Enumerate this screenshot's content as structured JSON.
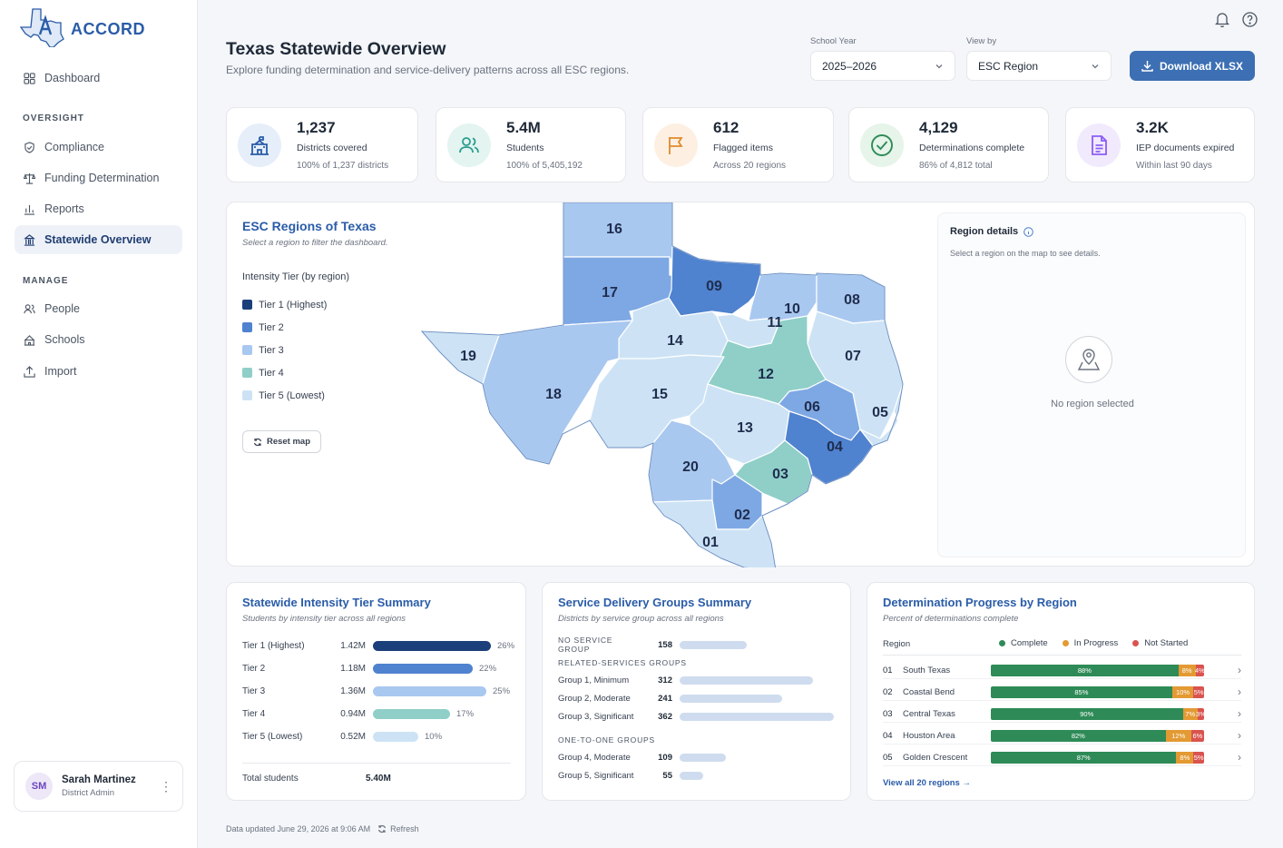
{
  "app": {
    "name": "ACCORD"
  },
  "sidebar": {
    "dashboard": "Dashboard",
    "oversight_header": "OVERSIGHT",
    "oversight": [
      "Compliance",
      "Funding Determination",
      "Reports",
      "Statewide Overview"
    ],
    "manage_header": "MANAGE",
    "manage": [
      "People",
      "Schools",
      "Import"
    ],
    "user": {
      "initials": "SM",
      "name": "Sarah Martinez",
      "role": "District Admin"
    }
  },
  "header": {
    "title": "Texas Statewide Overview",
    "subtitle": "Explore funding determination and service-delivery patterns across all ESC regions.",
    "school_year_label": "School Year",
    "school_year_value": "2025–2026",
    "view_by_label": "View by",
    "view_by_value": "ESC Region",
    "download_label": "Download XLSX"
  },
  "kpis": [
    {
      "value": "1,237",
      "label": "Districts covered",
      "sub": "100% of 1,237 districts",
      "icon": "school-icon",
      "color": "#2a5ca8"
    },
    {
      "value": "5.4M",
      "label": "Students",
      "sub": "100% of 5,405,192",
      "icon": "users-icon",
      "color": "#2a9d8f"
    },
    {
      "value": "612",
      "label": "Flagged items",
      "sub": "Across 20 regions",
      "icon": "flag-icon",
      "color": "#e08a2c"
    },
    {
      "value": "4,129",
      "label": "Determinations complete",
      "sub": "86% of 4,812 total",
      "icon": "check-circle-icon",
      "color": "#2e8b57"
    },
    {
      "value": "3.2K",
      "label": "IEP documents expired",
      "sub": "Within last 90 days",
      "icon": "document-icon",
      "color": "#8b5cf6"
    }
  ],
  "map": {
    "title": "ESC Regions of Texas",
    "subtitle": "Select a region to filter the dashboard.",
    "legend_title": "Intensity Tier (by region)",
    "tiers": [
      {
        "label": "Tier 1 (Highest)",
        "color": "#1b3f7a"
      },
      {
        "label": "Tier 2",
        "color": "#4f82cf"
      },
      {
        "label": "Tier 3",
        "color": "#a9c8f0"
      },
      {
        "label": "Tier 4",
        "color": "#8fcfc8"
      },
      {
        "label": "Tier 5 (Lowest)",
        "color": "#cde3f5"
      }
    ],
    "reset_label": "Reset map",
    "regions": [
      "16",
      "17",
      "09",
      "10",
      "08",
      "11",
      "19",
      "14",
      "07",
      "12",
      "18",
      "15",
      "06",
      "05",
      "13",
      "04",
      "20",
      "03",
      "02",
      "01"
    ],
    "details_title": "Region details",
    "details_hint": "Select a region on the map to see details.",
    "details_empty": "No region selected"
  },
  "tier_summary": {
    "title": "Statewide Intensity Tier Summary",
    "subtitle": "Students by intensity tier across all regions",
    "rows": [
      {
        "label": "Tier 1 (Highest)",
        "value": "1.42M",
        "pct": "26%",
        "frac": 0.26,
        "color": "#1b3f7a"
      },
      {
        "label": "Tier 2",
        "value": "1.18M",
        "pct": "22%",
        "frac": 0.22,
        "color": "#4f82cf"
      },
      {
        "label": "Tier 3",
        "value": "1.36M",
        "pct": "25%",
        "frac": 0.25,
        "color": "#a9c8f0"
      },
      {
        "label": "Tier 4",
        "value": "0.94M",
        "pct": "17%",
        "frac": 0.17,
        "color": "#8fcfc8"
      },
      {
        "label": "Tier 5 (Lowest)",
        "value": "0.52M",
        "pct": "10%",
        "frac": 0.1,
        "color": "#cde3f5"
      }
    ],
    "total_label": "Total students",
    "total_value": "5.40M"
  },
  "service_groups": {
    "title": "Service Delivery Groups Summary",
    "subtitle": "Districts by service group across all regions",
    "no_service": {
      "label": "NO SERVICE GROUP",
      "value": "158",
      "frac": 0.158
    },
    "related_header": "RELATED-SERVICES GROUPS",
    "related": [
      {
        "label": "Group 1, Minimum",
        "value": "312",
        "frac": 0.312
      },
      {
        "label": "Group 2, Moderate",
        "value": "241",
        "frac": 0.241
      },
      {
        "label": "Group 3, Significant",
        "value": "362",
        "frac": 0.362
      }
    ],
    "one_to_one_header": "ONE-TO-ONE GROUPS",
    "one_to_one": [
      {
        "label": "Group 4, Moderate",
        "value": "109",
        "frac": 0.109
      },
      {
        "label": "Group 5, Significant",
        "value": "55",
        "frac": 0.055
      }
    ]
  },
  "progress": {
    "title": "Determination Progress by Region",
    "subtitle": "Percent of determinations complete",
    "col_region": "Region",
    "legend": [
      {
        "label": "Complete",
        "color": "#2e8b57"
      },
      {
        "label": "In Progress",
        "color": "#e39a33"
      },
      {
        "label": "Not Started",
        "color": "#d9534f"
      }
    ],
    "rows": [
      {
        "num": "01",
        "name": "South Texas",
        "complete": "88%",
        "in_progress": "8%",
        "not_started": "4%",
        "c": 0.88,
        "p": 0.08,
        "n": 0.04
      },
      {
        "num": "02",
        "name": "Coastal Bend",
        "complete": "85%",
        "in_progress": "10%",
        "not_started": "5%",
        "c": 0.85,
        "p": 0.1,
        "n": 0.05
      },
      {
        "num": "03",
        "name": "Central Texas",
        "complete": "90%",
        "in_progress": "7%",
        "not_started": "3%",
        "c": 0.9,
        "p": 0.07,
        "n": 0.03
      },
      {
        "num": "04",
        "name": "Houston Area",
        "complete": "82%",
        "in_progress": "12%",
        "not_started": "6%",
        "c": 0.82,
        "p": 0.12,
        "n": 0.06
      },
      {
        "num": "05",
        "name": "Golden Crescent",
        "complete": "87%",
        "in_progress": "8%",
        "not_started": "5%",
        "c": 0.87,
        "p": 0.08,
        "n": 0.05
      }
    ],
    "view_all": "View all 20 regions →"
  },
  "footer": {
    "updated": "Data updated June 29, 2026 at 9:06 AM",
    "refresh": "Refresh"
  }
}
